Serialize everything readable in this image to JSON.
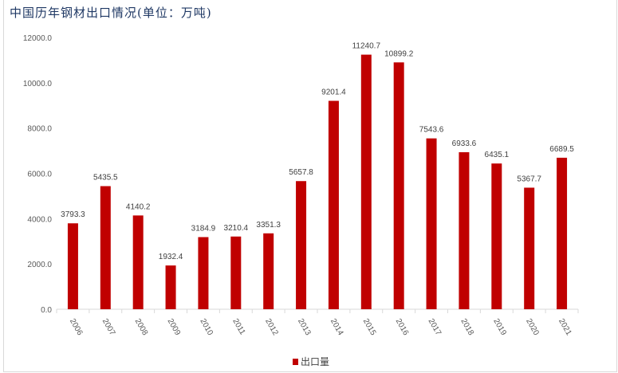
{
  "title": "中国历年钢材出口情况(单位：万吨)",
  "colors": {
    "bar": "#C00000",
    "axis": "#d9d9d9"
  },
  "chart_data": {
    "type": "bar",
    "title": "中国历年钢材出口情况(单位：万吨)",
    "categories": [
      "2006",
      "2007",
      "2008",
      "2009",
      "2010",
      "2011",
      "2012",
      "2013",
      "2014",
      "2015",
      "2016",
      "2017",
      "2018",
      "2019",
      "2020",
      "2021"
    ],
    "series": [
      {
        "name": "出口量",
        "values": [
          3793.3,
          5435.5,
          4140.2,
          1932.4,
          3184.9,
          3210.4,
          3351.3,
          5657.8,
          9201.4,
          11240.7,
          10899.2,
          7543.6,
          6933.6,
          6435.1,
          5367.7,
          6689.5
        ]
      }
    ],
    "yticks": [
      "0.0",
      "2000.0",
      "4000.0",
      "6000.0",
      "8000.0",
      "10000.0",
      "12000.0"
    ],
    "ylim": [
      0,
      12000
    ],
    "grid": false,
    "legend": "bottom",
    "xlabel": "",
    "ylabel": ""
  }
}
